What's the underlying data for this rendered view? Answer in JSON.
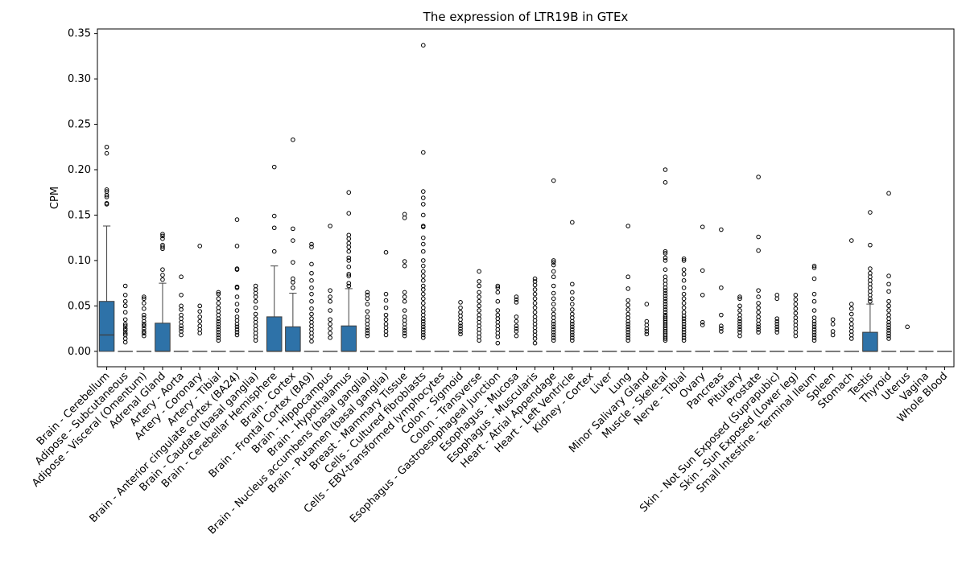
{
  "chart_data": {
    "type": "box",
    "title": "The expression of LTR19B in GTEx",
    "xlabel": "",
    "ylabel": "CPM",
    "ylim": [
      -0.017,
      0.355
    ],
    "yticks": [
      0.0,
      0.05,
      0.1,
      0.15,
      0.2,
      0.25,
      0.3,
      0.35
    ],
    "ytick_labels": [
      "0.00",
      "0.05",
      "0.10",
      "0.15",
      "0.20",
      "0.25",
      "0.30",
      "0.35"
    ],
    "grid": false,
    "legend": "none",
    "box_color": "#2e72a8",
    "categories": [
      "Brain - Cerebellum",
      "Adipose - Subcutaneous",
      "Adipose - Visceral (Omentum)",
      "Adrenal Gland",
      "Artery - Aorta",
      "Artery - Coronary",
      "Artery - Tibial",
      "Brain - Anterior cingulate cortex (BA24)",
      "Brain - Caudate (basal ganglia)",
      "Brain - Cerebellar Hemisphere",
      "Brain - Cortex",
      "Brain - Frontal Cortex (BA9)",
      "Brain - Hippocampus",
      "Brain - Hypothalamus",
      "Brain - Nucleus accumbens (basal ganglia)",
      "Brain - Putamen (basal ganglia)",
      "Breast - Mammary Tissue",
      "Cells - Cultured fibroblasts",
      "Cells - EBV-transformed lymphocytes",
      "Colon - Sigmoid",
      "Colon - Transverse",
      "Esophagus - Gastroesophageal Junction",
      "Esophagus - Mucosa",
      "Esophagus - Muscularis",
      "Heart - Atrial Appendage",
      "Heart - Left Ventricle",
      "Kidney - Cortex",
      "Liver",
      "Lung",
      "Minor Salivary Gland",
      "Muscle - Skeletal",
      "Nerve - Tibial",
      "Ovary",
      "Pancreas",
      "Pituitary",
      "Prostate",
      "Skin - Not Sun Exposed (Suprapubic)",
      "Skin - Sun Exposed (Lower leg)",
      "Small Intestine - Terminal Ileum",
      "Spleen",
      "Stomach",
      "Testis",
      "Thyroid",
      "Uterus",
      "Vagina",
      "Whole Blood"
    ],
    "boxes": [
      {
        "q1": 0.0,
        "median": 0.018,
        "q3": 0.055,
        "whisker_low": 0.0,
        "whisker_high": 0.138,
        "outliers": [
          0.162,
          0.163,
          0.17,
          0.172,
          0.176,
          0.178,
          0.218,
          0.225
        ]
      },
      {
        "q1": 0.0,
        "median": 0.0,
        "q3": 0.0,
        "whisker_low": 0.0,
        "whisker_high": 0.0,
        "outliers": [
          0.01,
          0.014,
          0.018,
          0.02,
          0.023,
          0.025,
          0.028,
          0.03,
          0.035,
          0.043,
          0.05,
          0.055,
          0.062,
          0.072
        ]
      },
      {
        "q1": 0.0,
        "median": 0.0,
        "q3": 0.0,
        "whisker_low": 0.0,
        "whisker_high": 0.0,
        "outliers": [
          0.017,
          0.02,
          0.022,
          0.025,
          0.028,
          0.03,
          0.033,
          0.037,
          0.04,
          0.047,
          0.053,
          0.058,
          0.06
        ]
      },
      {
        "q1": 0.0,
        "median": 0.0,
        "q3": 0.031,
        "whisker_low": 0.0,
        "whisker_high": 0.075,
        "outliers": [
          0.079,
          0.084,
          0.09,
          0.113,
          0.115,
          0.117,
          0.124,
          0.127,
          0.129
        ]
      },
      {
        "q1": 0.0,
        "median": 0.0,
        "q3": 0.0,
        "whisker_low": 0.0,
        "whisker_high": 0.0,
        "outliers": [
          0.018,
          0.022,
          0.025,
          0.028,
          0.032,
          0.036,
          0.04,
          0.046,
          0.05,
          0.062,
          0.082
        ]
      },
      {
        "q1": 0.0,
        "median": 0.0,
        "q3": 0.0,
        "whisker_low": 0.0,
        "whisker_high": 0.0,
        "outliers": [
          0.02,
          0.024,
          0.028,
          0.033,
          0.038,
          0.044,
          0.05,
          0.116
        ]
      },
      {
        "q1": 0.0,
        "median": 0.0,
        "q3": 0.0,
        "whisker_low": 0.0,
        "whisker_high": 0.0,
        "outliers": [
          0.012,
          0.015,
          0.018,
          0.021,
          0.024,
          0.027,
          0.03,
          0.033,
          0.036,
          0.04,
          0.044,
          0.048,
          0.053,
          0.058,
          0.063,
          0.065
        ]
      },
      {
        "q1": 0.0,
        "median": 0.0,
        "q3": 0.0,
        "whisker_low": 0.0,
        "whisker_high": 0.0,
        "outliers": [
          0.018,
          0.021,
          0.024,
          0.027,
          0.03,
          0.034,
          0.038,
          0.045,
          0.052,
          0.06,
          0.07,
          0.071,
          0.09,
          0.091,
          0.116,
          0.145
        ]
      },
      {
        "q1": 0.0,
        "median": 0.0,
        "q3": 0.0,
        "whisker_low": 0.0,
        "whisker_high": 0.0,
        "outliers": [
          0.012,
          0.016,
          0.02,
          0.024,
          0.028,
          0.032,
          0.036,
          0.041,
          0.048,
          0.055,
          0.06,
          0.064,
          0.068,
          0.072
        ]
      },
      {
        "q1": 0.0,
        "median": 0.0,
        "q3": 0.038,
        "whisker_low": 0.0,
        "whisker_high": 0.094,
        "outliers": [
          0.11,
          0.136,
          0.149,
          0.203
        ]
      },
      {
        "q1": 0.0,
        "median": 0.0,
        "q3": 0.027,
        "whisker_low": 0.0,
        "whisker_high": 0.064,
        "outliers": [
          0.07,
          0.076,
          0.08,
          0.098,
          0.122,
          0.135,
          0.233
        ]
      },
      {
        "q1": 0.0,
        "median": 0.0,
        "q3": 0.0,
        "whisker_low": 0.0,
        "whisker_high": 0.0,
        "outliers": [
          0.011,
          0.016,
          0.02,
          0.024,
          0.028,
          0.032,
          0.036,
          0.041,
          0.047,
          0.055,
          0.063,
          0.07,
          0.078,
          0.086,
          0.096,
          0.115,
          0.118
        ]
      },
      {
        "q1": 0.0,
        "median": 0.0,
        "q3": 0.0,
        "whisker_low": 0.0,
        "whisker_high": 0.0,
        "outliers": [
          0.015,
          0.02,
          0.025,
          0.03,
          0.035,
          0.045,
          0.055,
          0.06,
          0.067,
          0.138
        ]
      },
      {
        "q1": 0.0,
        "median": 0.0,
        "q3": 0.028,
        "whisker_low": 0.0,
        "whisker_high": 0.069,
        "outliers": [
          0.072,
          0.075,
          0.083,
          0.085,
          0.093,
          0.1,
          0.103,
          0.11,
          0.115,
          0.119,
          0.124,
          0.128,
          0.152,
          0.175
        ]
      },
      {
        "q1": 0.0,
        "median": 0.0,
        "q3": 0.0,
        "whisker_low": 0.0,
        "whisker_high": 0.0,
        "outliers": [
          0.017,
          0.02,
          0.023,
          0.026,
          0.03,
          0.034,
          0.038,
          0.044,
          0.052,
          0.058,
          0.062,
          0.065
        ]
      },
      {
        "q1": 0.0,
        "median": 0.0,
        "q3": 0.0,
        "whisker_low": 0.0,
        "whisker_high": 0.0,
        "outliers": [
          0.018,
          0.022,
          0.026,
          0.03,
          0.035,
          0.04,
          0.048,
          0.056,
          0.063,
          0.109
        ]
      },
      {
        "q1": 0.0,
        "median": 0.0,
        "q3": 0.0,
        "whisker_low": 0.0,
        "whisker_high": 0.0,
        "outliers": [
          0.017,
          0.02,
          0.023,
          0.026,
          0.03,
          0.034,
          0.038,
          0.045,
          0.055,
          0.06,
          0.065,
          0.094,
          0.099,
          0.147,
          0.151
        ]
      },
      {
        "q1": 0.0,
        "median": 0.0,
        "q3": 0.0,
        "whisker_low": 0.0,
        "whisker_high": 0.0,
        "outliers": [
          0.015,
          0.018,
          0.021,
          0.024,
          0.027,
          0.03,
          0.033,
          0.036,
          0.04,
          0.044,
          0.048,
          0.053,
          0.058,
          0.063,
          0.068,
          0.072,
          0.078,
          0.083,
          0.088,
          0.094,
          0.1,
          0.11,
          0.118,
          0.125,
          0.137,
          0.138,
          0.15,
          0.162,
          0.169,
          0.176,
          0.219,
          0.337
        ]
      },
      {
        "q1": 0.0,
        "median": 0.0,
        "q3": 0.0,
        "whisker_low": 0.0,
        "whisker_high": 0.0,
        "outliers": []
      },
      {
        "q1": 0.0,
        "median": 0.0,
        "q3": 0.0,
        "whisker_low": 0.0,
        "whisker_high": 0.0,
        "outliers": [
          0.019,
          0.022,
          0.025,
          0.028,
          0.031,
          0.035,
          0.039,
          0.043,
          0.048,
          0.054
        ]
      },
      {
        "q1": 0.0,
        "median": 0.0,
        "q3": 0.0,
        "whisker_low": 0.0,
        "whisker_high": 0.0,
        "outliers": [
          0.012,
          0.016,
          0.02,
          0.024,
          0.028,
          0.032,
          0.036,
          0.04,
          0.045,
          0.05,
          0.055,
          0.06,
          0.065,
          0.072,
          0.077,
          0.088
        ]
      },
      {
        "q1": 0.0,
        "median": 0.0,
        "q3": 0.0,
        "whisker_low": 0.0,
        "whisker_high": 0.0,
        "outliers": [
          0.009,
          0.016,
          0.02,
          0.024,
          0.028,
          0.032,
          0.036,
          0.04,
          0.045,
          0.055,
          0.065,
          0.07,
          0.072
        ]
      },
      {
        "q1": 0.0,
        "median": 0.0,
        "q3": 0.0,
        "whisker_low": 0.0,
        "whisker_high": 0.0,
        "outliers": [
          0.017,
          0.022,
          0.025,
          0.028,
          0.033,
          0.038,
          0.054,
          0.057,
          0.06
        ]
      },
      {
        "q1": 0.0,
        "median": 0.0,
        "q3": 0.0,
        "whisker_low": 0.0,
        "whisker_high": 0.0,
        "outliers": [
          0.009,
          0.014,
          0.018,
          0.022,
          0.026,
          0.03,
          0.034,
          0.038,
          0.043,
          0.048,
          0.053,
          0.058,
          0.063,
          0.068,
          0.073,
          0.077,
          0.08
        ]
      },
      {
        "q1": 0.0,
        "median": 0.0,
        "q3": 0.0,
        "whisker_low": 0.0,
        "whisker_high": 0.0,
        "outliers": [
          0.012,
          0.015,
          0.018,
          0.021,
          0.024,
          0.027,
          0.03,
          0.033,
          0.037,
          0.041,
          0.046,
          0.052,
          0.058,
          0.064,
          0.072,
          0.082,
          0.088,
          0.095,
          0.098,
          0.1,
          0.188
        ]
      },
      {
        "q1": 0.0,
        "median": 0.0,
        "q3": 0.0,
        "whisker_low": 0.0,
        "whisker_high": 0.0,
        "outliers": [
          0.012,
          0.015,
          0.018,
          0.021,
          0.024,
          0.027,
          0.03,
          0.033,
          0.037,
          0.041,
          0.046,
          0.052,
          0.058,
          0.065,
          0.074,
          0.142
        ]
      },
      {
        "q1": 0.0,
        "median": 0.0,
        "q3": 0.0,
        "whisker_low": 0.0,
        "whisker_high": 0.0,
        "outliers": []
      },
      {
        "q1": 0.0,
        "median": 0.0,
        "q3": 0.0,
        "whisker_low": 0.0,
        "whisker_high": 0.0,
        "outliers": []
      },
      {
        "q1": 0.0,
        "median": 0.0,
        "q3": 0.0,
        "whisker_low": 0.0,
        "whisker_high": 0.0,
        "outliers": [
          0.012,
          0.015,
          0.018,
          0.021,
          0.024,
          0.027,
          0.03,
          0.033,
          0.037,
          0.041,
          0.046,
          0.051,
          0.056,
          0.069,
          0.082,
          0.138
        ]
      },
      {
        "q1": 0.0,
        "median": 0.0,
        "q3": 0.0,
        "whisker_low": 0.0,
        "whisker_high": 0.0,
        "outliers": [
          0.019,
          0.022,
          0.025,
          0.029,
          0.033,
          0.052
        ]
      },
      {
        "q1": 0.0,
        "median": 0.0,
        "q3": 0.0,
        "whisker_low": 0.0,
        "whisker_high": 0.0,
        "outliers": [
          0.012,
          0.014,
          0.016,
          0.018,
          0.02,
          0.022,
          0.024,
          0.026,
          0.028,
          0.03,
          0.032,
          0.034,
          0.036,
          0.038,
          0.04,
          0.043,
          0.046,
          0.049,
          0.052,
          0.055,
          0.058,
          0.061,
          0.064,
          0.067,
          0.07,
          0.074,
          0.078,
          0.082,
          0.09,
          0.1,
          0.103,
          0.108,
          0.11,
          0.186,
          0.2
        ]
      },
      {
        "q1": 0.0,
        "median": 0.0,
        "q3": 0.0,
        "whisker_low": 0.0,
        "whisker_high": 0.0,
        "outliers": [
          0.012,
          0.015,
          0.018,
          0.021,
          0.024,
          0.027,
          0.03,
          0.033,
          0.036,
          0.039,
          0.043,
          0.048,
          0.053,
          0.058,
          0.063,
          0.07,
          0.078,
          0.085,
          0.09,
          0.1,
          0.102
        ]
      },
      {
        "q1": 0.0,
        "median": 0.0,
        "q3": 0.0,
        "whisker_low": 0.0,
        "whisker_high": 0.0,
        "outliers": [
          0.029,
          0.032,
          0.062,
          0.089,
          0.137
        ]
      },
      {
        "q1": 0.0,
        "median": 0.0,
        "q3": 0.0,
        "whisker_low": 0.0,
        "whisker_high": 0.0,
        "outliers": [
          0.022,
          0.025,
          0.028,
          0.04,
          0.07,
          0.134
        ]
      },
      {
        "q1": 0.0,
        "median": 0.0,
        "q3": 0.0,
        "whisker_low": 0.0,
        "whisker_high": 0.0,
        "outliers": [
          0.017,
          0.021,
          0.024,
          0.027,
          0.03,
          0.033,
          0.036,
          0.04,
          0.045,
          0.05,
          0.058,
          0.06
        ]
      },
      {
        "q1": 0.0,
        "median": 0.0,
        "q3": 0.0,
        "whisker_low": 0.0,
        "whisker_high": 0.0,
        "outliers": [
          0.021,
          0.024,
          0.027,
          0.03,
          0.034,
          0.038,
          0.043,
          0.048,
          0.053,
          0.06,
          0.067,
          0.111,
          0.126,
          0.192
        ]
      },
      {
        "q1": 0.0,
        "median": 0.0,
        "q3": 0.0,
        "whisker_low": 0.0,
        "whisker_high": 0.0,
        "outliers": [
          0.021,
          0.024,
          0.027,
          0.03,
          0.033,
          0.036,
          0.058,
          0.062
        ]
      },
      {
        "q1": 0.0,
        "median": 0.0,
        "q3": 0.0,
        "whisker_low": 0.0,
        "whisker_high": 0.0,
        "outliers": [
          0.017,
          0.021,
          0.025,
          0.029,
          0.033,
          0.037,
          0.042,
          0.047,
          0.052,
          0.057,
          0.062
        ]
      },
      {
        "q1": 0.0,
        "median": 0.0,
        "q3": 0.0,
        "whisker_low": 0.0,
        "whisker_high": 0.0,
        "outliers": [
          0.012,
          0.015,
          0.018,
          0.021,
          0.024,
          0.027,
          0.03,
          0.033,
          0.037,
          0.045,
          0.055,
          0.063,
          0.08,
          0.092,
          0.094
        ]
      },
      {
        "q1": 0.0,
        "median": 0.0,
        "q3": 0.0,
        "whisker_low": 0.0,
        "whisker_high": 0.0,
        "outliers": [
          0.018,
          0.022,
          0.03,
          0.035
        ]
      },
      {
        "q1": 0.0,
        "median": 0.0,
        "q3": 0.0,
        "whisker_low": 0.0,
        "whisker_high": 0.0,
        "outliers": [
          0.014,
          0.018,
          0.022,
          0.026,
          0.03,
          0.035,
          0.041,
          0.047,
          0.052,
          0.122
        ]
      },
      {
        "q1": 0.0,
        "median": 0.0,
        "q3": 0.021,
        "whisker_low": 0.0,
        "whisker_high": 0.052,
        "outliers": [
          0.055,
          0.058,
          0.062,
          0.066,
          0.07,
          0.074,
          0.078,
          0.082,
          0.086,
          0.091,
          0.117,
          0.153
        ]
      },
      {
        "q1": 0.0,
        "median": 0.0,
        "q3": 0.0,
        "whisker_low": 0.0,
        "whisker_high": 0.0,
        "outliers": [
          0.014,
          0.017,
          0.02,
          0.023,
          0.026,
          0.029,
          0.032,
          0.036,
          0.04,
          0.045,
          0.05,
          0.055,
          0.066,
          0.074,
          0.083,
          0.174
        ]
      },
      {
        "q1": 0.0,
        "median": 0.0,
        "q3": 0.0,
        "whisker_low": 0.0,
        "whisker_high": 0.0,
        "outliers": [
          0.027
        ]
      },
      {
        "q1": 0.0,
        "median": 0.0,
        "q3": 0.0,
        "whisker_low": 0.0,
        "whisker_high": 0.0,
        "outliers": []
      },
      {
        "q1": 0.0,
        "median": 0.0,
        "q3": 0.0,
        "whisker_low": 0.0,
        "whisker_high": 0.0,
        "outliers": []
      }
    ]
  }
}
